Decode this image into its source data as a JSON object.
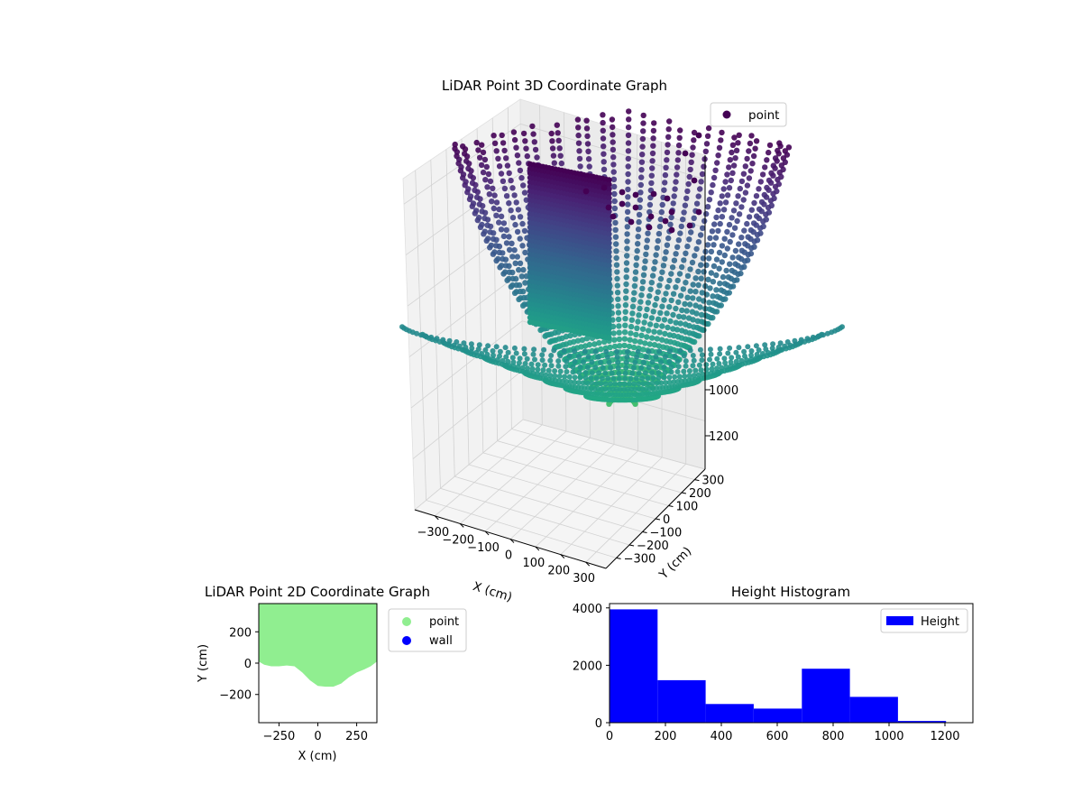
{
  "figure": {
    "background": "#ffffff"
  },
  "chart_data": [
    {
      "type": "scatter",
      "title": "LiDAR Point 3D Coordinate Graph",
      "xlabel": "X (cm)",
      "ylabel": "Y (cm)",
      "zlabel": "",
      "xlim": [
        -380,
        380
      ],
      "ylim": [
        -380,
        380
      ],
      "zlim": [
        0,
        1300
      ],
      "x_ticks": [
        "−300",
        "−200",
        "−100",
        "0",
        "100",
        "200",
        "300"
      ],
      "y_ticks": [
        "−300",
        "−200",
        "−100",
        "0",
        "100",
        "200",
        "300"
      ],
      "z_ticks": [
        "1000",
        "1200"
      ],
      "grid": true,
      "colormap": "viridis",
      "legend": {
        "placement": "top-right",
        "entries": [
          {
            "label": "point",
            "color": "#440154"
          }
        ]
      },
      "series": [
        {
          "name": "point",
          "description_colored_by_height": true
        }
      ]
    },
    {
      "type": "scatter",
      "title": "LiDAR Point 2D Coordinate Graph",
      "xlabel": "X (cm)",
      "ylabel": "Y (cm)",
      "xlim": [
        -380,
        380
      ],
      "ylim": [
        -380,
        380
      ],
      "x_ticks": [
        -250,
        0,
        250
      ],
      "y_ticks": [
        200,
        0,
        -200
      ],
      "x_tick_labels": [
        "−250",
        "0",
        "250"
      ],
      "y_tick_labels": [
        "200",
        "0",
        "−200"
      ],
      "legend": {
        "placement": "outside-right",
        "entries": [
          {
            "label": "point",
            "color": "#90ee90"
          },
          {
            "label": "wall",
            "color": "#0000ff"
          }
        ]
      },
      "point_region_boundary": [
        [
          -380,
          380
        ],
        [
          380,
          380
        ],
        [
          380,
          10
        ],
        [
          340,
          -20
        ],
        [
          300,
          -40
        ],
        [
          250,
          -60
        ],
        [
          200,
          -90
        ],
        [
          150,
          -130
        ],
        [
          100,
          -150
        ],
        [
          50,
          -150
        ],
        [
          0,
          -145
        ],
        [
          -50,
          -110
        ],
        [
          -100,
          -60
        ],
        [
          -150,
          -20
        ],
        [
          -200,
          -15
        ],
        [
          -250,
          -20
        ],
        [
          -300,
          -20
        ],
        [
          -345,
          -10
        ],
        [
          -380,
          10
        ]
      ]
    },
    {
      "type": "bar",
      "title": "Height Histogram",
      "xlabel": "",
      "ylabel": "",
      "xlim": [
        0,
        1300
      ],
      "ylim": [
        0,
        4150
      ],
      "x_ticks": [
        0,
        200,
        400,
        600,
        800,
        1000,
        1200
      ],
      "y_ticks": [
        0,
        2000,
        4000
      ],
      "bins": [
        {
          "from": 0,
          "to": 172,
          "count": 3950
        },
        {
          "from": 172,
          "to": 344,
          "count": 1480
        },
        {
          "from": 344,
          "to": 516,
          "count": 650
        },
        {
          "from": 516,
          "to": 688,
          "count": 490
        },
        {
          "from": 688,
          "to": 860,
          "count": 1880
        },
        {
          "from": 860,
          "to": 1032,
          "count": 900
        },
        {
          "from": 1032,
          "to": 1204,
          "count": 60
        }
      ],
      "bar_color": "#0000ff",
      "legend": {
        "placement": "top-right",
        "entries": [
          {
            "label": "Height",
            "color": "#0000ff"
          }
        ]
      }
    }
  ]
}
